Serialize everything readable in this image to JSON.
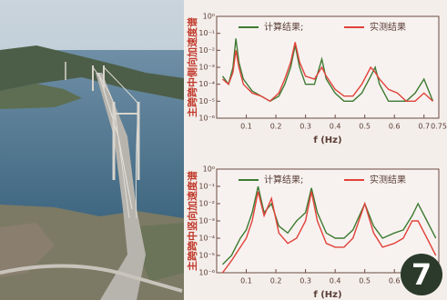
{
  "badge": "7",
  "chart_data": [
    {
      "type": "line",
      "y_label": "主跨跨中侧向加速度谱",
      "x_label": "f (Hz)",
      "log_y": true,
      "grid": false,
      "legend": "top",
      "x": [
        0.02,
        0.04,
        0.055,
        0.065,
        0.075,
        0.09,
        0.12,
        0.15,
        0.18,
        0.21,
        0.23,
        0.25,
        0.265,
        0.28,
        0.3,
        0.33,
        0.355,
        0.37,
        0.4,
        0.43,
        0.46,
        0.49,
        0.52,
        0.535,
        0.55,
        0.58,
        0.61,
        0.64,
        0.67,
        0.7,
        0.73
      ],
      "series": [
        {
          "name": "计算结果;",
          "color": "#3e7a32",
          "values": [
            0.0003,
            0.0001,
            0.001,
            0.05,
            0.002,
            0.0002,
            4e-05,
            2e-05,
            1e-05,
            2e-05,
            0.0001,
            0.001,
            0.02,
            0.001,
            0.0001,
            0.0001,
            0.003,
            0.0002,
            3e-05,
            1e-05,
            1e-05,
            3e-05,
            0.0003,
            0.001,
            0.0001,
            1e-05,
            1e-05,
            1e-05,
            3e-05,
            0.0002,
            1e-05
          ]
        },
        {
          "name": "实测结果",
          "color": "#e2413a",
          "values": [
            0.0002,
            0.0001,
            0.0005,
            0.01,
            0.001,
            0.0001,
            3e-05,
            2e-05,
            1e-05,
            3e-05,
            0.0002,
            0.002,
            0.03,
            0.002,
            0.0003,
            0.0002,
            0.001,
            0.0003,
            5e-05,
            2e-05,
            2e-05,
            0.0001,
            0.001,
            0.0005,
            0.0002,
            5e-05,
            3e-05,
            1e-05,
            1e-05,
            3e-05,
            1e-05
          ]
        }
      ],
      "xlim": [
        0,
        0.75
      ],
      "xticks": [
        0.1,
        0.2,
        0.3,
        0.4,
        0.5,
        0.6,
        0.7,
        0.75
      ],
      "ylim": [
        1e-06,
        1
      ],
      "yticks": [
        {
          "value": 1,
          "label": "10⁰"
        },
        {
          "value": 0.1,
          "label": "10⁻¹"
        },
        {
          "value": 0.01,
          "label": "10⁻²"
        },
        {
          "value": 0.001,
          "label": "10⁻³"
        },
        {
          "value": 0.0001,
          "label": "10⁻⁴"
        },
        {
          "value": 1e-05,
          "label": "10⁻⁵"
        },
        {
          "value": 1e-06,
          "label": "10⁻⁶"
        }
      ]
    },
    {
      "type": "line",
      "y_label": "主跨跨中竖向加速度谱",
      "x_label": "f (Hz)",
      "log_y": true,
      "grid": false,
      "legend": "top",
      "x": [
        0.02,
        0.05,
        0.08,
        0.1,
        0.12,
        0.14,
        0.16,
        0.185,
        0.21,
        0.24,
        0.27,
        0.3,
        0.32,
        0.34,
        0.37,
        0.4,
        0.43,
        0.46,
        0.5,
        0.53,
        0.56,
        0.6,
        0.63,
        0.66,
        0.68,
        0.71,
        0.74
      ],
      "series": [
        {
          "name": "计算结果;",
          "color": "#3e7a32",
          "values": [
            3e-06,
            1e-05,
            0.0001,
            0.0003,
            0.003,
            0.1,
            0.003,
            0.01,
            0.0005,
            0.0002,
            0.001,
            0.003,
            0.08,
            0.003,
            0.0002,
            0.0001,
            0.0001,
            0.0003,
            0.01,
            0.0005,
            0.0001,
            0.0002,
            0.0003,
            0.002,
            0.01,
            0.001,
            0.0001
          ]
        },
        {
          "name": "实测结果",
          "color": "#e2413a",
          "values": [
            1e-06,
            5e-06,
            3e-05,
            0.0001,
            0.001,
            0.05,
            0.002,
            0.02,
            0.0002,
            5e-05,
            0.0001,
            0.001,
            0.05,
            0.001,
            5e-05,
            3e-05,
            3e-05,
            0.0001,
            0.01,
            0.0002,
            3e-05,
            5e-05,
            0.0001,
            0.001,
            0.001,
            0.0001,
            1e-05
          ]
        }
      ],
      "xlim": [
        0,
        0.75
      ],
      "xticks": [
        0.1,
        0.2,
        0.3,
        0.4,
        0.5,
        0.6,
        0.7
      ],
      "ylim": [
        1e-06,
        1
      ],
      "yticks": [
        {
          "value": 1,
          "label": "10⁰"
        },
        {
          "value": 0.1,
          "label": "10⁻¹"
        },
        {
          "value": 0.01,
          "label": "10⁻²"
        },
        {
          "value": 0.001,
          "label": "10⁻³"
        },
        {
          "value": 0.0001,
          "label": "10⁻⁴"
        },
        {
          "value": 1e-05,
          "label": "10⁻⁵"
        },
        {
          "value": 1e-06,
          "label": "10⁻⁶"
        }
      ]
    }
  ]
}
